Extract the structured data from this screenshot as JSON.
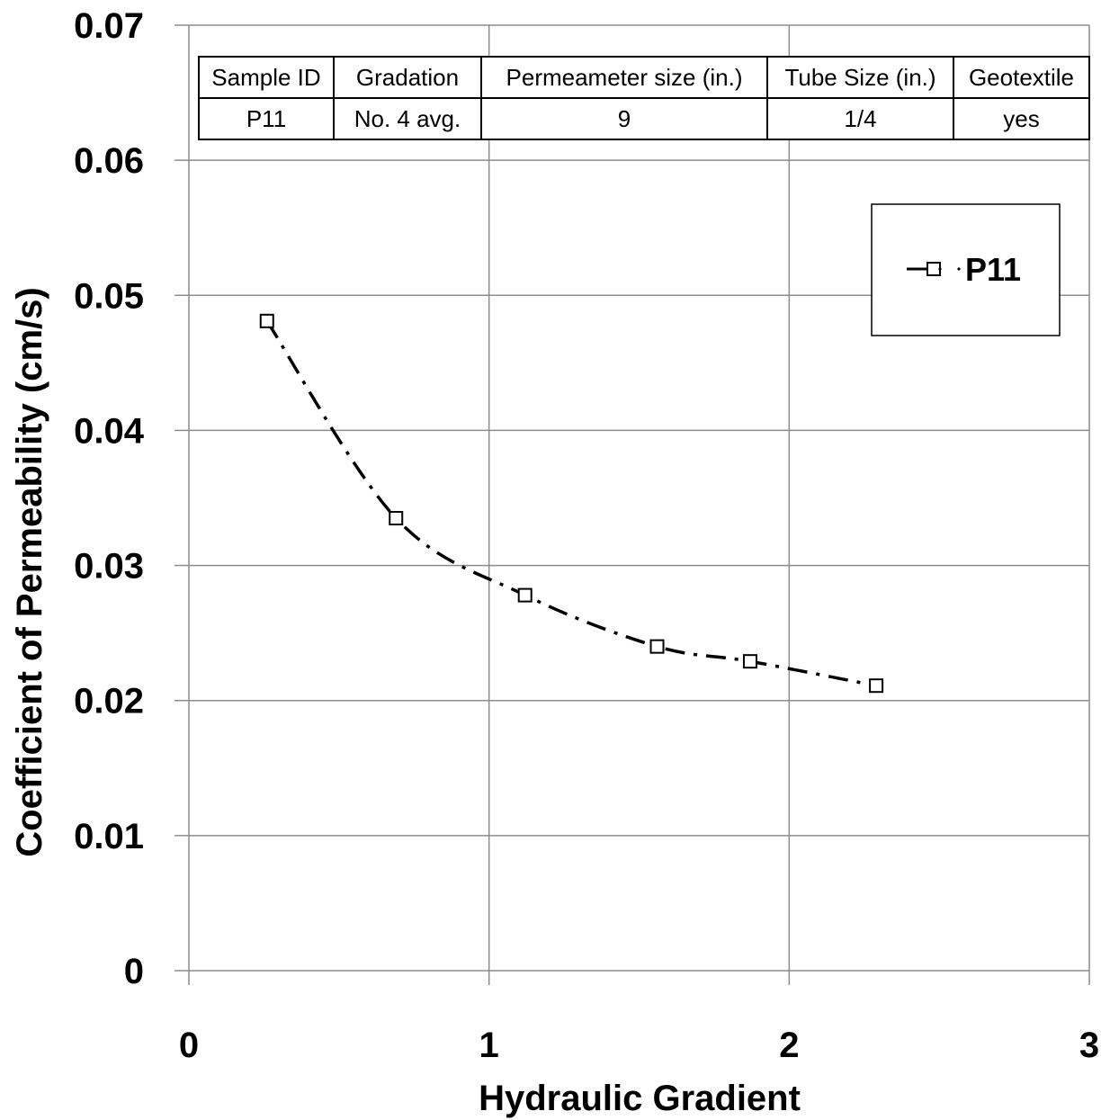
{
  "chart_data": {
    "type": "scatter",
    "x_label": "Hydraulic Gradient",
    "y_label": "Coefficient of Permeability (cm/s)",
    "x_range": [
      0,
      3
    ],
    "y_range": [
      0,
      0.07
    ],
    "x_ticks": [
      "0",
      "1",
      "2",
      "3"
    ],
    "y_ticks": [
      "0",
      "0.01",
      "0.02",
      "0.03",
      "0.04",
      "0.05",
      "0.06",
      "0.07"
    ],
    "grid": true,
    "legend_position": "top-right",
    "series": [
      {
        "name": "P11",
        "marker": "hollow-square",
        "line_style": "dash-dot",
        "color": "#000000",
        "x": [
          0.26,
          0.69,
          1.12,
          1.56,
          1.87,
          2.29
        ],
        "y": [
          0.0481,
          0.0335,
          0.0278,
          0.024,
          0.0229,
          0.0211
        ]
      }
    ]
  },
  "info_table": {
    "headers": [
      "Sample ID",
      "Gradation",
      "Permeameter size (in.)",
      "Tube Size (in.)",
      "Geotextile"
    ],
    "values": [
      "P11",
      "No. 4 avg.",
      "9",
      "1/4",
      "yes"
    ]
  }
}
